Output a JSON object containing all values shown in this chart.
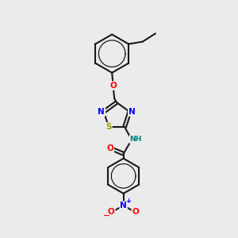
{
  "background_color": "#ebebeb",
  "bond_color": "#1a1a1a",
  "atom_colors": {
    "O": "#ff0000",
    "N": "#0000ff",
    "S": "#999900",
    "H": "#008080",
    "C": "#1a1a1a"
  },
  "figsize": [
    3.0,
    3.0
  ],
  "dpi": 100
}
